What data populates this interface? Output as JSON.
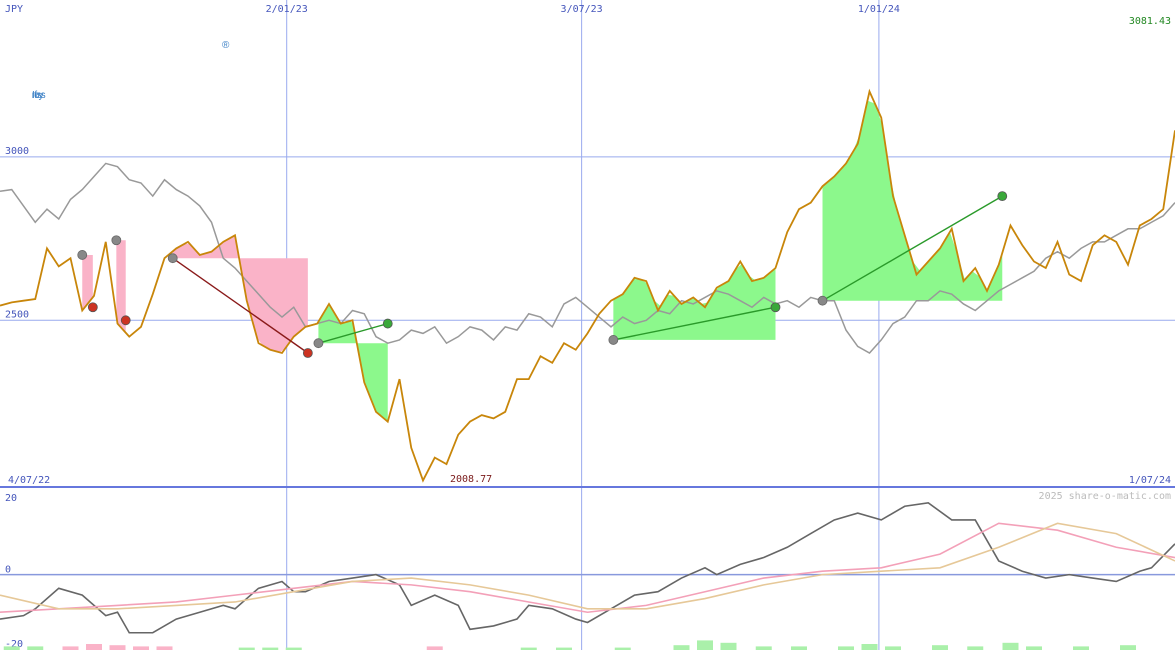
{
  "chart_data": [
    {
      "type": "line",
      "panel": "price",
      "currency": "JPY",
      "last_value_label": "3081.43",
      "min_label": "2008.77",
      "x_start_label": "4/07/22",
      "x_end_label": "1/07/24",
      "x_ticks": [
        "2/01/23",
        "3/07/23",
        "1/01/24"
      ],
      "y_ticks": [
        {
          "value": 3000,
          "label": "3000"
        },
        {
          "value": 2500,
          "label": "2500"
        }
      ],
      "ylim": [
        1990,
        3480
      ],
      "x_range": [
        0,
        100
      ],
      "x_tick_positions": [
        24.4,
        49.5,
        74.8
      ],
      "series": [
        {
          "role": "price",
          "color": "#c8860a",
          "x": [
            0,
            1,
            2,
            3,
            4,
            5,
            6,
            7,
            8,
            9,
            10,
            11,
            12,
            13,
            14,
            15,
            16,
            17,
            18,
            19,
            20,
            21,
            22,
            23,
            24,
            25,
            26,
            27,
            28,
            29,
            30,
            31,
            32,
            33,
            34,
            35,
            36,
            37,
            38,
            39,
            40,
            41,
            42,
            43,
            44,
            45,
            46,
            47,
            48,
            49,
            50,
            51,
            52,
            53,
            54,
            55,
            56,
            57,
            58,
            59,
            60,
            61,
            62,
            63,
            64,
            65,
            66,
            67,
            68,
            69,
            70,
            71,
            72,
            73,
            74,
            75,
            76,
            77,
            78,
            79,
            80,
            81,
            82,
            83,
            84,
            85,
            86,
            87,
            88,
            89,
            90,
            91,
            92,
            93,
            94,
            95,
            96,
            97,
            98,
            99,
            100
          ],
          "y": [
            2545,
            2555,
            2560,
            2565,
            2720,
            2665,
            2690,
            2530,
            2575,
            2740,
            2490,
            2450,
            2480,
            2580,
            2690,
            2720,
            2740,
            2700,
            2710,
            2740,
            2760,
            2560,
            2430,
            2410,
            2400,
            2450,
            2480,
            2490,
            2550,
            2490,
            2500,
            2310,
            2220,
            2190,
            2320,
            2110,
            2010,
            2080,
            2060,
            2150,
            2190,
            2210,
            2200,
            2220,
            2320,
            2320,
            2390,
            2370,
            2430,
            2410,
            2460,
            2520,
            2560,
            2580,
            2630,
            2620,
            2530,
            2590,
            2550,
            2570,
            2540,
            2600,
            2620,
            2680,
            2620,
            2630,
            2660,
            2770,
            2840,
            2860,
            2910,
            2940,
            2980,
            3040,
            3200,
            3120,
            2880,
            2760,
            2640,
            2680,
            2720,
            2780,
            2620,
            2660,
            2590,
            2670,
            2790,
            2730,
            2680,
            2660,
            2740,
            2640,
            2620,
            2730,
            2760,
            2740,
            2670,
            2790,
            2810,
            2840,
            3081
          ]
        },
        {
          "role": "average",
          "color": "#999999",
          "x": [
            0,
            1,
            2,
            3,
            4,
            5,
            6,
            7,
            8,
            9,
            10,
            11,
            12,
            13,
            14,
            15,
            16,
            17,
            18,
            19,
            20,
            21,
            22,
            23,
            24,
            25,
            26,
            27,
            28,
            29,
            30,
            31,
            32,
            33,
            34,
            35,
            36,
            37,
            38,
            39,
            40,
            41,
            42,
            43,
            44,
            45,
            46,
            47,
            48,
            49,
            50,
            51,
            52,
            53,
            54,
            55,
            56,
            57,
            58,
            59,
            60,
            61,
            62,
            63,
            64,
            65,
            66,
            67,
            68,
            69,
            70,
            71,
            72,
            73,
            74,
            75,
            76,
            77,
            78,
            79,
            80,
            81,
            82,
            83,
            84,
            85,
            86,
            87,
            88,
            89,
            90,
            91,
            92,
            93,
            94,
            95,
            96,
            97,
            98,
            99,
            100
          ],
          "y": [
            2895,
            2900,
            2850,
            2800,
            2840,
            2810,
            2870,
            2900,
            2940,
            2980,
            2970,
            2930,
            2920,
            2880,
            2930,
            2900,
            2880,
            2850,
            2800,
            2690,
            2660,
            2620,
            2580,
            2540,
            2510,
            2540,
            2480,
            2490,
            2500,
            2490,
            2530,
            2520,
            2450,
            2430,
            2440,
            2470,
            2460,
            2480,
            2430,
            2450,
            2480,
            2470,
            2440,
            2480,
            2470,
            2520,
            2510,
            2480,
            2550,
            2570,
            2540,
            2510,
            2480,
            2510,
            2490,
            2500,
            2530,
            2520,
            2560,
            2550,
            2570,
            2590,
            2580,
            2560,
            2540,
            2570,
            2550,
            2560,
            2540,
            2570,
            2560,
            2560,
            2470,
            2420,
            2400,
            2440,
            2490,
            2510,
            2560,
            2560,
            2590,
            2580,
            2550,
            2530,
            2560,
            2590,
            2610,
            2630,
            2650,
            2690,
            2710,
            2690,
            2720,
            2740,
            2740,
            2760,
            2780,
            2780,
            2800,
            2820,
            2860
          ]
        }
      ],
      "trades": [
        {
          "start": {
            "x": 7.0,
            "y": 2700
          },
          "end": {
            "x": 7.9,
            "y": 2540
          },
          "result": "loss"
        },
        {
          "start": {
            "x": 9.9,
            "y": 2745
          },
          "end": {
            "x": 10.7,
            "y": 2500
          },
          "result": "loss"
        },
        {
          "start": {
            "x": 14.7,
            "y": 2690
          },
          "end": {
            "x": 26.2,
            "y": 2400
          },
          "result": "loss"
        },
        {
          "start": {
            "x": 27.1,
            "y": 2430
          },
          "end": {
            "x": 33.0,
            "y": 2490
          },
          "result": "gain"
        },
        {
          "start": {
            "x": 52.2,
            "y": 2440
          },
          "end": {
            "x": 66.0,
            "y": 2540
          },
          "result": "gain"
        },
        {
          "start": {
            "x": 70.0,
            "y": 2560
          },
          "end": {
            "x": 85.3,
            "y": 2880
          },
          "result": "gain"
        }
      ]
    },
    {
      "type": "line",
      "panel": "oscillator",
      "y_ticks": [
        {
          "value": 20,
          "label": "20"
        },
        {
          "value": 0,
          "label": "0"
        },
        {
          "value": -20,
          "label": "-20"
        }
      ],
      "ylim": [
        -20,
        23
      ],
      "x_range": [
        0,
        100
      ],
      "series": [
        {
          "role": "momentum",
          "color": "#666666",
          "x": [
            0,
            2,
            3,
            5,
            7,
            9,
            10,
            11,
            13,
            15,
            17,
            19,
            20,
            22,
            24,
            25,
            26,
            28,
            30,
            32,
            34,
            35,
            37,
            39,
            40,
            42,
            44,
            45,
            47,
            49,
            50,
            52,
            54,
            56,
            58,
            60,
            61,
            63,
            65,
            67,
            69,
            71,
            73,
            75,
            77,
            79,
            81,
            83,
            85,
            87,
            89,
            91,
            93,
            95,
            97,
            98,
            100
          ],
          "y": [
            -13,
            -12,
            -10,
            -4,
            -6,
            -12,
            -11,
            -17,
            -17,
            -13,
            -11,
            -9,
            -10,
            -4,
            -2,
            -5,
            -5,
            -2,
            -1,
            0,
            -3,
            -9,
            -6,
            -9,
            -16,
            -15,
            -13,
            -9,
            -10,
            -13,
            -14,
            -10,
            -6,
            -5,
            -1,
            2,
            0,
            3,
            5,
            8,
            12,
            16,
            18,
            16,
            20,
            21,
            16,
            16,
            4,
            1,
            -1,
            0,
            -1,
            -2,
            1,
            2,
            9
          ]
        },
        {
          "role": "signal-fast",
          "color": "#f3a0b8",
          "x": [
            0,
            5,
            10,
            15,
            20,
            25,
            30,
            35,
            40,
            45,
            50,
            55,
            60,
            65,
            70,
            75,
            80,
            85,
            90,
            95,
            100
          ],
          "y": [
            -11,
            -10,
            -9,
            -8,
            -6,
            -4,
            -2,
            -3,
            -5,
            -8,
            -11,
            -9,
            -5,
            -1,
            1,
            2,
            6,
            15,
            13,
            8,
            5
          ]
        },
        {
          "role": "signal-slow",
          "color": "#e6c898",
          "x": [
            0,
            5,
            10,
            15,
            20,
            25,
            30,
            35,
            40,
            45,
            50,
            55,
            60,
            65,
            70,
            75,
            80,
            85,
            90,
            95,
            100
          ],
          "y": [
            -6,
            -10,
            -10,
            -9,
            -8,
            -5,
            -2,
            -1,
            -3,
            -6,
            -10,
            -10,
            -7,
            -3,
            0,
            1,
            2,
            8,
            15,
            12,
            4
          ]
        }
      ],
      "bars": [
        {
          "x": 1,
          "value": 3,
          "sign": "pos"
        },
        {
          "x": 3,
          "value": 3,
          "sign": "pos"
        },
        {
          "x": 6,
          "value": 3,
          "sign": "neg"
        },
        {
          "x": 8,
          "value": 5,
          "sign": "neg"
        },
        {
          "x": 10,
          "value": 4,
          "sign": "neg"
        },
        {
          "x": 12,
          "value": 3,
          "sign": "neg"
        },
        {
          "x": 14,
          "value": 3,
          "sign": "neg"
        },
        {
          "x": 21,
          "value": 2,
          "sign": "pos"
        },
        {
          "x": 23,
          "value": 2,
          "sign": "pos"
        },
        {
          "x": 25,
          "value": 2,
          "sign": "pos"
        },
        {
          "x": 37,
          "value": 3,
          "sign": "neg"
        },
        {
          "x": 45,
          "value": 2,
          "sign": "pos"
        },
        {
          "x": 48,
          "value": 2,
          "sign": "pos"
        },
        {
          "x": 53,
          "value": 2,
          "sign": "pos"
        },
        {
          "x": 58,
          "value": 4,
          "sign": "pos"
        },
        {
          "x": 60,
          "value": 8,
          "sign": "pos"
        },
        {
          "x": 62,
          "value": 6,
          "sign": "pos"
        },
        {
          "x": 65,
          "value": 3,
          "sign": "pos"
        },
        {
          "x": 68,
          "value": 3,
          "sign": "pos"
        },
        {
          "x": 72,
          "value": 3,
          "sign": "pos"
        },
        {
          "x": 74,
          "value": 5,
          "sign": "pos"
        },
        {
          "x": 76,
          "value": 3,
          "sign": "pos"
        },
        {
          "x": 80,
          "value": 4,
          "sign": "pos"
        },
        {
          "x": 83,
          "value": 3,
          "sign": "pos"
        },
        {
          "x": 86,
          "value": 6,
          "sign": "pos"
        },
        {
          "x": 88,
          "value": 3,
          "sign": "pos"
        },
        {
          "x": 92,
          "value": 3,
          "sign": "pos"
        },
        {
          "x": 96,
          "value": 4,
          "sign": "pos"
        }
      ]
    }
  ],
  "brand": {
    "name": "Infosys",
    "trademark": "®",
    "color": "#3a7fc5"
  },
  "credit": "2025 share-o-matic.com",
  "colors": {
    "grid": "#99aaee",
    "axis_text": "#4455bb",
    "last_value": "#228822",
    "gain_fill": "#8cf88c",
    "loss_fill": "#fab3c8",
    "gain_line": "#2a9a2a",
    "loss_line": "#8a1a1a",
    "gain_dot": "#3aa83a",
    "loss_dot": "#cc3322",
    "entry_dot": "#888888",
    "bar_pos": "#aaf0aa",
    "bar_neg": "#fab3c8"
  }
}
